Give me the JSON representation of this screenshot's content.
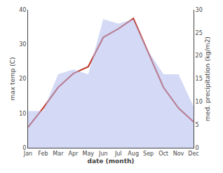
{
  "chart_data": {
    "type": "line",
    "categories": [
      "Jan",
      "Feb",
      "Mar",
      "Apr",
      "May",
      "Jun",
      "Jul",
      "Aug",
      "Sep",
      "Oct",
      "Nov",
      "Dec"
    ],
    "xlabel": "date (month)",
    "ylabel": "max temp (C)",
    "y2label": "med. precipitation (kg/m2)",
    "series": [
      {
        "type": "area",
        "axis": "y2",
        "color": "#b0bcee",
        "values": [
          8,
          8,
          16,
          17,
          16,
          28,
          27,
          28,
          21,
          16,
          16,
          9
        ]
      },
      {
        "type": "line",
        "color": "#c0392b",
        "values": [
          6.0,
          11.5,
          17.5,
          21.5,
          23.5,
          32.0,
          34.5,
          37.5,
          27.5,
          17.5,
          11.5,
          7.5
        ]
      }
    ],
    "ylim": [
      0,
      40
    ],
    "yticks": [
      0,
      10,
      20,
      30,
      40
    ],
    "y2lim": [
      0,
      30
    ],
    "y2ticks": [
      0,
      5,
      10,
      15,
      20,
      25,
      30
    ],
    "grid": false
  }
}
